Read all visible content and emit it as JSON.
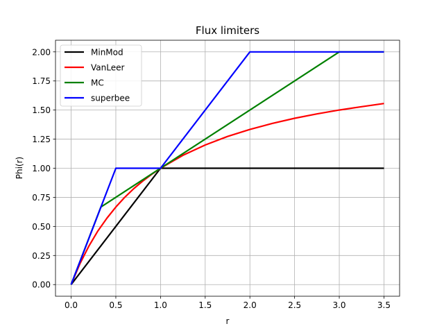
{
  "chart_data": {
    "type": "line",
    "title": "Flux limiters",
    "xlabel": "r",
    "ylabel": "Phi(r)",
    "xlim": [
      -0.175,
      3.675
    ],
    "ylim": [
      -0.1,
      2.1
    ],
    "xticks": [
      "0.0",
      "0.5",
      "1.0",
      "1.5",
      "2.0",
      "2.5",
      "3.0",
      "3.5"
    ],
    "yticks": [
      "0.00",
      "0.25",
      "0.50",
      "0.75",
      "1.00",
      "1.25",
      "1.50",
      "1.75",
      "2.00"
    ],
    "grid": true,
    "legend_position": "top-left",
    "series": [
      {
        "name": "MinMod",
        "color": "#000000",
        "x": [
          0,
          1,
          3.5
        ],
        "y": [
          0,
          1,
          1
        ]
      },
      {
        "name": "VanLeer",
        "color": "#ff0000",
        "x": [
          0,
          0.1,
          0.2,
          0.3,
          0.4,
          0.5,
          0.6,
          0.7,
          0.8,
          0.9,
          1.0,
          1.25,
          1.5,
          1.75,
          2.0,
          2.25,
          2.5,
          2.75,
          3.0,
          3.25,
          3.5
        ],
        "y": [
          0,
          0.182,
          0.333,
          0.462,
          0.571,
          0.667,
          0.75,
          0.824,
          0.889,
          0.947,
          1.0,
          1.111,
          1.2,
          1.273,
          1.333,
          1.385,
          1.429,
          1.467,
          1.5,
          1.529,
          1.556
        ]
      },
      {
        "name": "MC",
        "color": "#008000",
        "x": [
          0,
          0.333,
          3.0,
          3.5
        ],
        "y": [
          0,
          0.667,
          2.0,
          2.0
        ]
      },
      {
        "name": "superbee",
        "color": "#0000ff",
        "x": [
          0,
          0.5,
          1.0,
          2.0,
          3.5
        ],
        "y": [
          0,
          1.0,
          1.0,
          2.0,
          2.0
        ]
      }
    ]
  }
}
